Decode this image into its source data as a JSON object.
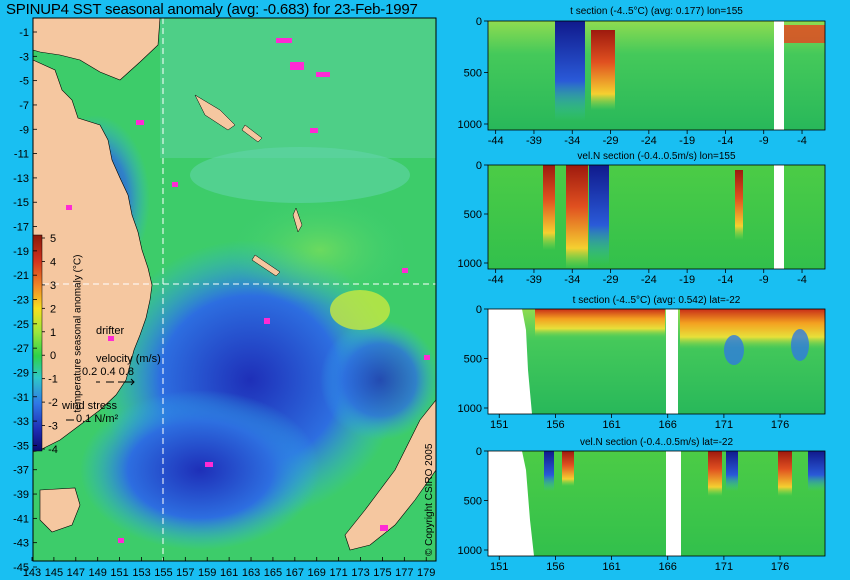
{
  "title": "SPINUP4 SST seasonal anomaly (avg: -0.683) for 23-Feb-1997",
  "copyright": "© Copyright CSIRO 2005",
  "map": {
    "lat_ticks": [
      "-1",
      "-3",
      "-5",
      "-7",
      "-9",
      "-11",
      "-13",
      "-15",
      "-17",
      "-19",
      "-21",
      "-23",
      "-25",
      "-27",
      "-29",
      "-31",
      "-33",
      "-35",
      "-37",
      "-39",
      "-41",
      "-43",
      "-45"
    ],
    "lon_ticks": [
      "143",
      "145",
      "147",
      "149",
      "151",
      "153",
      "155",
      "157",
      "159",
      "161",
      "163",
      "165",
      "167",
      "169",
      "171",
      "173",
      "175",
      "177",
      "179"
    ],
    "section_lon": 155,
    "section_lat": -22,
    "colorbar": {
      "title": "temperature seasonal anomaly (°C)",
      "ticks": [
        "5",
        "4",
        "3",
        "2",
        "1",
        "0",
        "-1",
        "-2",
        "-3",
        "-4"
      ]
    },
    "legend": {
      "drifter": "drifter",
      "velocity_title": "velocity (m/s)",
      "velocity_values": "0.2 0.4 0.8",
      "wind_title": "wind stress",
      "wind_value": "0.1 N/m²"
    }
  },
  "chart_data": [
    {
      "type": "heatmap",
      "title": "t section (-4..5°C) (avg: 0.177) lon=155",
      "x_ticks": [
        "-44",
        "-39",
        "-34",
        "-29",
        "-24",
        "-19",
        "-14",
        "-9",
        "-4"
      ],
      "y_ticks": [
        "0",
        "500",
        "1000"
      ],
      "xlim": [
        -45,
        -1
      ],
      "ylim": [
        1000,
        0
      ]
    },
    {
      "type": "heatmap",
      "title": "vel.N section (-0.4..0.5m/s) lon=155",
      "x_ticks": [
        "-44",
        "-39",
        "-34",
        "-29",
        "-24",
        "-19",
        "-14",
        "-9",
        "-4"
      ],
      "y_ticks": [
        "0",
        "500",
        "1000"
      ],
      "xlim": [
        -45,
        -1
      ],
      "ylim": [
        1000,
        0
      ]
    },
    {
      "type": "heatmap",
      "title": "t section (-4..5°C) (avg: 0.542) lat=-22",
      "x_ticks": [
        "151",
        "156",
        "161",
        "166",
        "171",
        "176"
      ],
      "y_ticks": [
        "0",
        "500",
        "1000"
      ],
      "xlim": [
        150,
        180
      ],
      "ylim": [
        1000,
        0
      ]
    },
    {
      "type": "heatmap",
      "title": "vel.N section (-0.4..0.5m/s) lat=-22",
      "x_ticks": [
        "151",
        "156",
        "161",
        "166",
        "171",
        "176"
      ],
      "y_ticks": [
        "0",
        "500",
        "1000"
      ],
      "xlim": [
        150,
        180
      ],
      "ylim": [
        1000,
        0
      ]
    }
  ]
}
